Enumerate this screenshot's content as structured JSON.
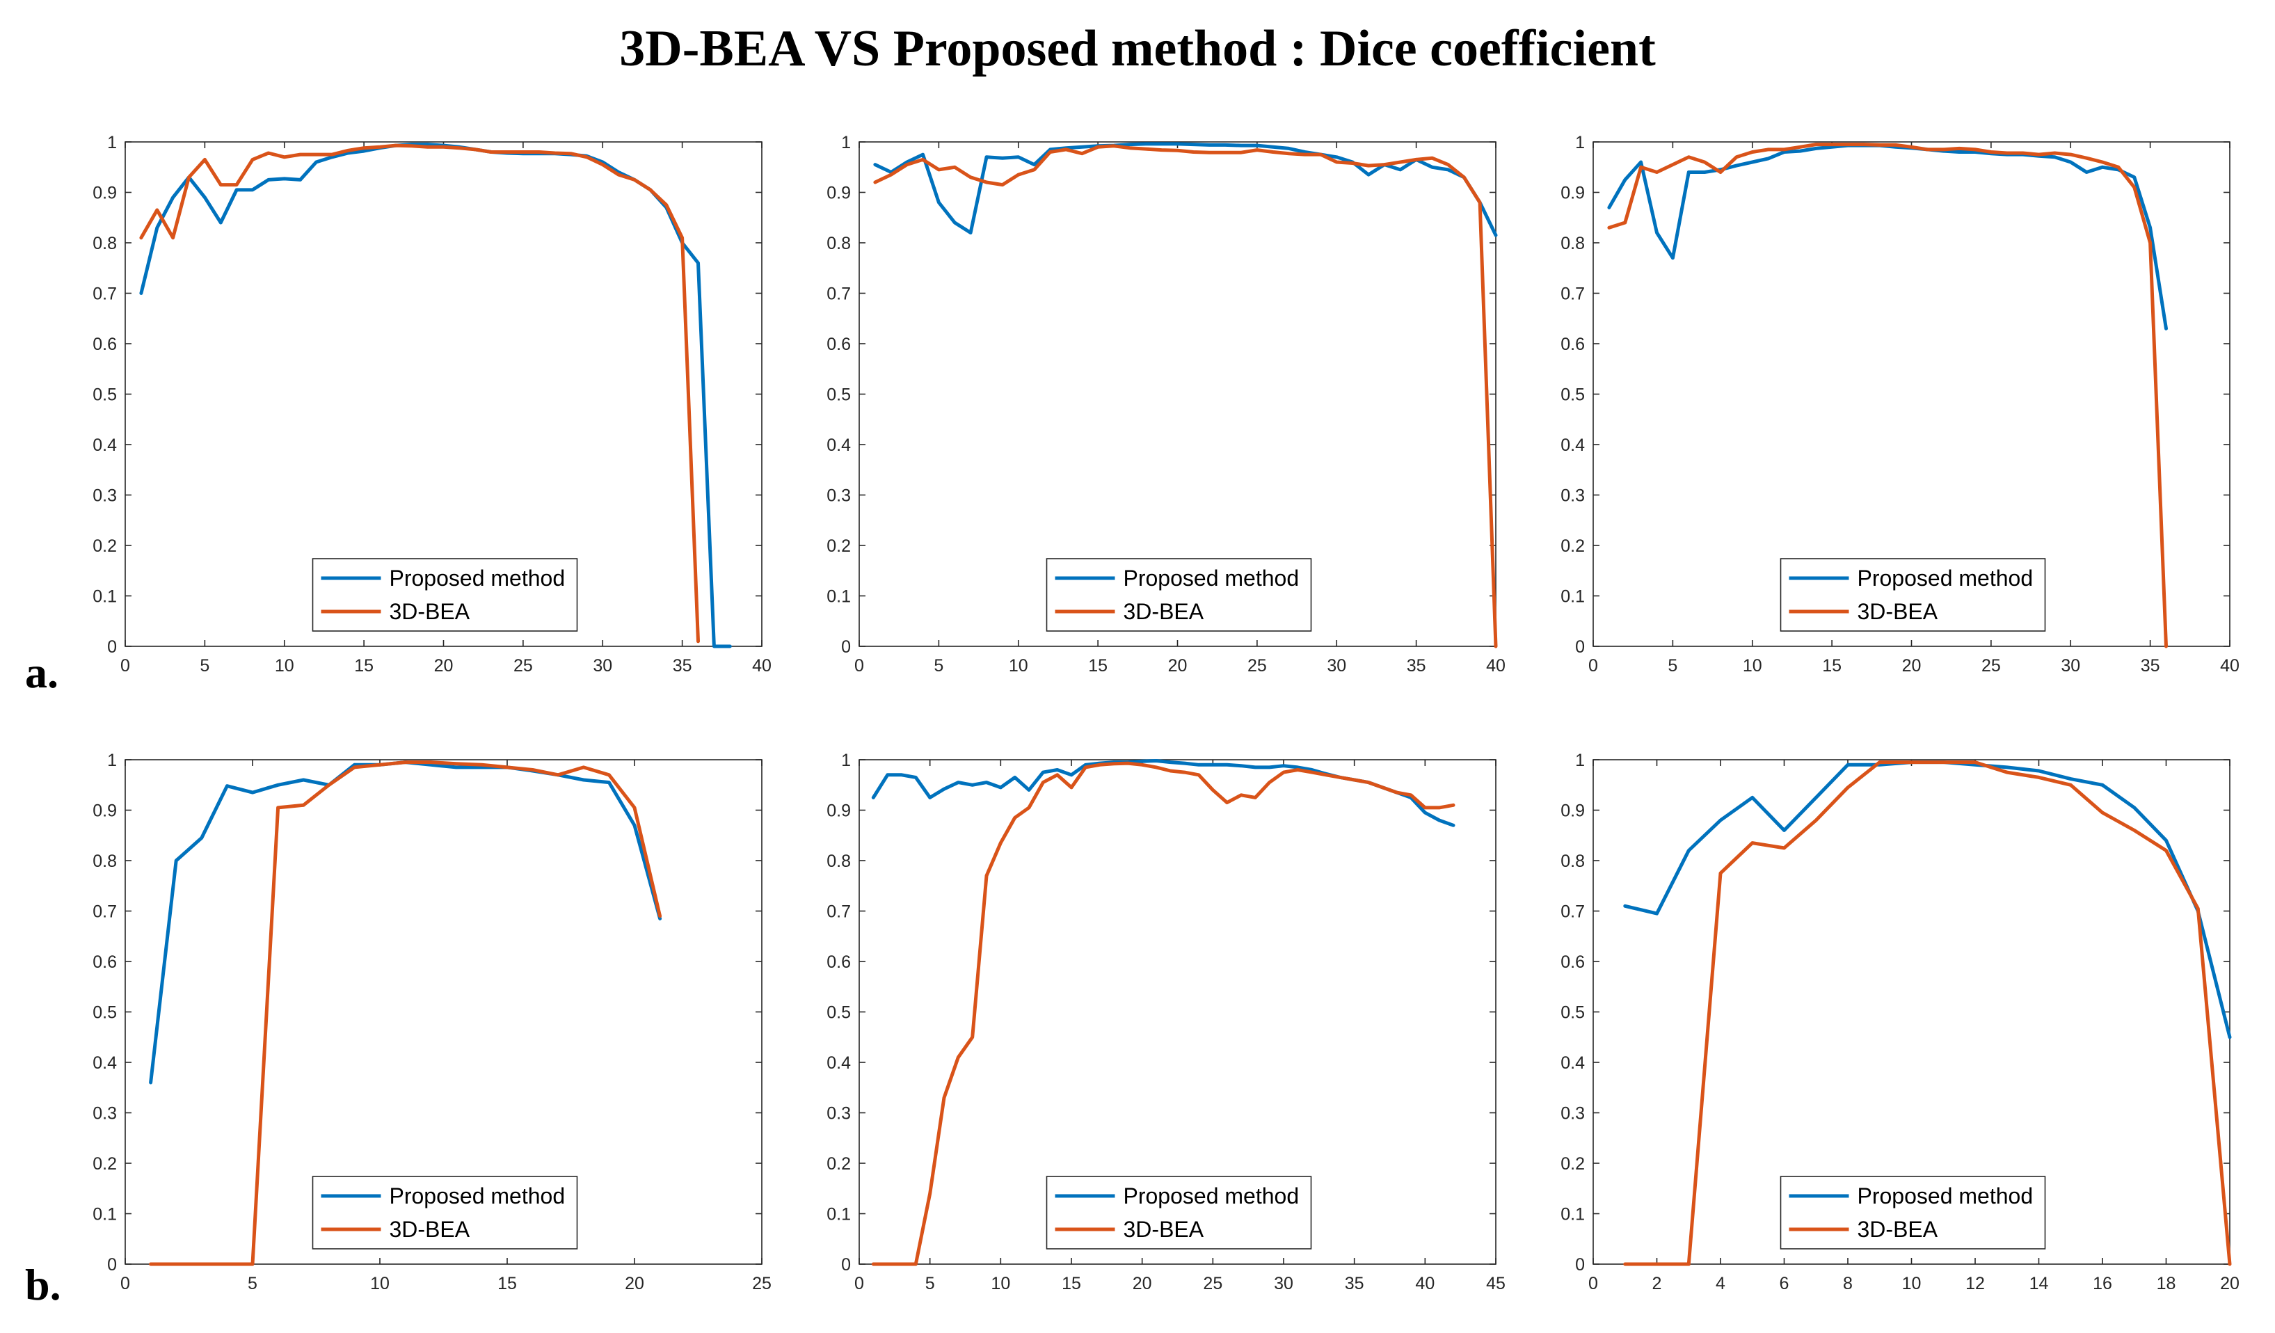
{
  "title": "3D-BEA VS Proposed method : Dice coefficient",
  "row_labels": {
    "a": "a.",
    "b": "b."
  },
  "colors": {
    "proposed": "#0072BD",
    "bea": "#D95319",
    "axis": "#262626"
  },
  "legend": {
    "proposed": "Proposed method",
    "bea": "3D-BEA",
    "placement": "bottom-center"
  },
  "chart_data": [
    {
      "type": "line",
      "panel": "a-1",
      "xlim": [
        0,
        40
      ],
      "ylim": [
        0,
        1
      ],
      "xticks": [
        0,
        5,
        10,
        15,
        20,
        25,
        30,
        35,
        40
      ],
      "yticks": [
        0,
        0.1,
        0.2,
        0.3,
        0.4,
        0.5,
        0.6,
        0.7,
        0.8,
        0.9,
        1
      ],
      "series": [
        {
          "name": "Proposed method",
          "x": [
            1,
            2,
            3,
            4,
            5,
            6,
            7,
            8,
            9,
            10,
            11,
            12,
            13,
            14,
            15,
            16,
            17,
            18,
            19,
            20,
            21,
            22,
            23,
            24,
            25,
            26,
            27,
            28,
            29,
            30,
            31,
            32,
            33,
            34,
            35,
            36,
            37,
            38
          ],
          "y": [
            0.7,
            0.83,
            0.89,
            0.93,
            0.89,
            0.84,
            0.905,
            0.905,
            0.925,
            0.927,
            0.925,
            0.96,
            0.97,
            0.978,
            0.982,
            0.988,
            0.993,
            0.995,
            0.995,
            0.993,
            0.99,
            0.985,
            0.98,
            0.978,
            0.977,
            0.977,
            0.977,
            0.975,
            0.972,
            0.96,
            0.94,
            0.925,
            0.905,
            0.87,
            0.8,
            0.76,
            0.0,
            0.0
          ]
        },
        {
          "name": "3D-BEA",
          "x": [
            1,
            2,
            3,
            4,
            5,
            6,
            7,
            8,
            9,
            10,
            11,
            12,
            13,
            14,
            15,
            16,
            17,
            18,
            19,
            20,
            21,
            22,
            23,
            24,
            25,
            26,
            27,
            28,
            29,
            30,
            31,
            32,
            33,
            34,
            35,
            36
          ],
          "y": [
            0.81,
            0.865,
            0.81,
            0.93,
            0.965,
            0.915,
            0.915,
            0.965,
            0.978,
            0.97,
            0.975,
            0.975,
            0.975,
            0.983,
            0.988,
            0.99,
            0.993,
            0.992,
            0.99,
            0.99,
            0.988,
            0.985,
            0.98,
            0.98,
            0.98,
            0.98,
            0.978,
            0.977,
            0.97,
            0.955,
            0.935,
            0.925,
            0.905,
            0.875,
            0.81,
            0.01
          ]
        }
      ]
    },
    {
      "type": "line",
      "panel": "a-2",
      "xlim": [
        0,
        40
      ],
      "ylim": [
        0,
        1
      ],
      "xticks": [
        0,
        5,
        10,
        15,
        20,
        25,
        30,
        35,
        40
      ],
      "yticks": [
        0,
        0.1,
        0.2,
        0.3,
        0.4,
        0.5,
        0.6,
        0.7,
        0.8,
        0.9,
        1
      ],
      "series": [
        {
          "name": "Proposed method",
          "x": [
            1,
            2,
            3,
            4,
            5,
            6,
            7,
            8,
            9,
            10,
            11,
            12,
            13,
            14,
            15,
            16,
            17,
            18,
            19,
            20,
            21,
            22,
            23,
            24,
            25,
            26,
            27,
            28,
            29,
            30,
            31,
            32,
            33,
            34,
            35,
            36,
            37,
            38,
            39,
            40
          ],
          "y": [
            0.955,
            0.94,
            0.96,
            0.975,
            0.88,
            0.84,
            0.82,
            0.97,
            0.968,
            0.97,
            0.955,
            0.985,
            0.988,
            0.99,
            0.992,
            0.993,
            0.995,
            0.996,
            0.996,
            0.996,
            0.995,
            0.994,
            0.994,
            0.993,
            0.993,
            0.99,
            0.987,
            0.98,
            0.975,
            0.97,
            0.96,
            0.935,
            0.955,
            0.945,
            0.965,
            0.95,
            0.945,
            0.93,
            0.88,
            0.815
          ]
        },
        {
          "name": "3D-BEA",
          "x": [
            1,
            2,
            3,
            4,
            5,
            6,
            7,
            8,
            9,
            10,
            11,
            12,
            13,
            14,
            15,
            16,
            17,
            18,
            19,
            20,
            21,
            22,
            23,
            24,
            25,
            26,
            27,
            28,
            29,
            30,
            31,
            32,
            33,
            34,
            35,
            36,
            37,
            38,
            39,
            40
          ],
          "y": [
            0.92,
            0.935,
            0.955,
            0.965,
            0.945,
            0.95,
            0.93,
            0.92,
            0.915,
            0.935,
            0.945,
            0.98,
            0.985,
            0.977,
            0.99,
            0.992,
            0.988,
            0.986,
            0.984,
            0.983,
            0.98,
            0.979,
            0.979,
            0.979,
            0.984,
            0.98,
            0.977,
            0.975,
            0.975,
            0.96,
            0.958,
            0.953,
            0.955,
            0.96,
            0.965,
            0.968,
            0.955,
            0.93,
            0.88,
            0.0
          ]
        }
      ]
    },
    {
      "type": "line",
      "panel": "a-3",
      "xlim": [
        0,
        40
      ],
      "ylim": [
        0,
        1
      ],
      "xticks": [
        0,
        5,
        10,
        15,
        20,
        25,
        30,
        35,
        40
      ],
      "yticks": [
        0,
        0.1,
        0.2,
        0.3,
        0.4,
        0.5,
        0.6,
        0.7,
        0.8,
        0.9,
        1
      ],
      "series": [
        {
          "name": "Proposed method",
          "x": [
            1,
            2,
            3,
            4,
            5,
            6,
            7,
            8,
            9,
            10,
            11,
            12,
            13,
            14,
            15,
            16,
            17,
            18,
            19,
            20,
            21,
            22,
            23,
            24,
            25,
            26,
            27,
            28,
            29,
            30,
            31,
            32,
            33,
            34,
            35,
            36
          ],
          "y": [
            0.87,
            0.925,
            0.96,
            0.82,
            0.77,
            0.94,
            0.94,
            0.945,
            0.953,
            0.96,
            0.967,
            0.98,
            0.982,
            0.987,
            0.99,
            0.993,
            0.993,
            0.993,
            0.99,
            0.988,
            0.985,
            0.982,
            0.98,
            0.98,
            0.977,
            0.975,
            0.975,
            0.972,
            0.97,
            0.96,
            0.94,
            0.95,
            0.945,
            0.93,
            0.83,
            0.63
          ]
        },
        {
          "name": "3D-BEA",
          "x": [
            1,
            2,
            3,
            4,
            5,
            6,
            7,
            8,
            9,
            10,
            11,
            12,
            13,
            14,
            15,
            16,
            17,
            18,
            19,
            20,
            21,
            22,
            23,
            24,
            25,
            26,
            27,
            28,
            29,
            30,
            31,
            32,
            33,
            34,
            35,
            36
          ],
          "y": [
            0.83,
            0.84,
            0.95,
            0.94,
            0.955,
            0.97,
            0.96,
            0.94,
            0.97,
            0.98,
            0.985,
            0.985,
            0.99,
            0.995,
            0.995,
            0.995,
            0.995,
            0.994,
            0.994,
            0.99,
            0.985,
            0.985,
            0.987,
            0.985,
            0.98,
            0.978,
            0.978,
            0.975,
            0.978,
            0.975,
            0.968,
            0.96,
            0.95,
            0.91,
            0.8,
            0.0
          ]
        }
      ]
    },
    {
      "type": "line",
      "panel": "b-1",
      "xlim": [
        0,
        25
      ],
      "ylim": [
        0,
        1
      ],
      "xticks": [
        0,
        5,
        10,
        15,
        20,
        25
      ],
      "yticks": [
        0,
        0.1,
        0.2,
        0.3,
        0.4,
        0.5,
        0.6,
        0.7,
        0.8,
        0.9,
        1
      ],
      "series": [
        {
          "name": "Proposed method",
          "x": [
            1,
            2,
            3,
            4,
            5,
            6,
            7,
            8,
            9,
            10,
            11,
            12,
            13,
            14,
            15,
            16,
            17,
            18,
            19,
            20,
            21
          ],
          "y": [
            0.36,
            0.8,
            0.845,
            0.948,
            0.935,
            0.95,
            0.96,
            0.95,
            0.99,
            0.99,
            0.995,
            0.99,
            0.985,
            0.985,
            0.985,
            0.978,
            0.97,
            0.96,
            0.955,
            0.87,
            0.685
          ]
        },
        {
          "name": "3D-BEA",
          "x": [
            1,
            2,
            3,
            4,
            5,
            6,
            7,
            8,
            9,
            10,
            11,
            12,
            13,
            14,
            15,
            16,
            17,
            18,
            19,
            20,
            21
          ],
          "y": [
            0.0,
            0.0,
            0.0,
            0.0,
            0.0,
            0.905,
            0.91,
            0.95,
            0.985,
            0.99,
            0.995,
            0.995,
            0.992,
            0.99,
            0.985,
            0.98,
            0.97,
            0.985,
            0.97,
            0.905,
            0.69
          ]
        }
      ]
    },
    {
      "type": "line",
      "panel": "b-2",
      "xlim": [
        0,
        45
      ],
      "ylim": [
        0,
        1
      ],
      "xticks": [
        0,
        5,
        10,
        15,
        20,
        25,
        30,
        35,
        40,
        45
      ],
      "yticks": [
        0,
        0.1,
        0.2,
        0.3,
        0.4,
        0.5,
        0.6,
        0.7,
        0.8,
        0.9,
        1
      ],
      "series": [
        {
          "name": "Proposed method",
          "x": [
            1,
            2,
            3,
            4,
            5,
            6,
            7,
            8,
            9,
            10,
            11,
            12,
            13,
            14,
            15,
            16,
            17,
            18,
            19,
            20,
            21,
            22,
            23,
            24,
            25,
            26,
            27,
            28,
            29,
            30,
            31,
            32,
            33,
            34,
            35,
            36,
            37,
            38,
            39,
            40,
            41,
            42
          ],
          "y": [
            0.925,
            0.97,
            0.97,
            0.965,
            0.925,
            0.942,
            0.955,
            0.95,
            0.955,
            0.945,
            0.965,
            0.94,
            0.975,
            0.98,
            0.97,
            0.99,
            0.993,
            0.995,
            0.995,
            0.997,
            0.998,
            0.995,
            0.993,
            0.99,
            0.99,
            0.99,
            0.988,
            0.985,
            0.985,
            0.988,
            0.985,
            0.98,
            0.972,
            0.965,
            0.96,
            0.955,
            0.945,
            0.935,
            0.925,
            0.895,
            0.88,
            0.87
          ]
        },
        {
          "name": "3D-BEA",
          "x": [
            1,
            2,
            3,
            4,
            5,
            6,
            7,
            8,
            9,
            10,
            11,
            12,
            13,
            14,
            15,
            16,
            17,
            18,
            19,
            20,
            21,
            22,
            23,
            24,
            25,
            26,
            27,
            28,
            29,
            30,
            31,
            32,
            33,
            34,
            35,
            36,
            37,
            38,
            39,
            40,
            41,
            42
          ],
          "y": [
            0.0,
            0.0,
            0.0,
            0.0,
            0.14,
            0.33,
            0.41,
            0.45,
            0.77,
            0.835,
            0.885,
            0.905,
            0.955,
            0.97,
            0.945,
            0.985,
            0.99,
            0.992,
            0.993,
            0.99,
            0.985,
            0.978,
            0.975,
            0.97,
            0.94,
            0.915,
            0.93,
            0.925,
            0.955,
            0.975,
            0.98,
            0.975,
            0.97,
            0.965,
            0.96,
            0.955,
            0.945,
            0.935,
            0.93,
            0.905,
            0.905,
            0.91
          ]
        }
      ]
    },
    {
      "type": "line",
      "panel": "b-3",
      "xlim": [
        0,
        20
      ],
      "ylim": [
        0,
        1
      ],
      "xticks": [
        0,
        2,
        4,
        6,
        8,
        10,
        12,
        14,
        16,
        18,
        20
      ],
      "yticks": [
        0,
        0.1,
        0.2,
        0.3,
        0.4,
        0.5,
        0.6,
        0.7,
        0.8,
        0.9,
        1
      ],
      "series": [
        {
          "name": "Proposed method",
          "x": [
            1,
            2,
            3,
            4,
            5,
            6,
            7,
            8,
            9,
            10,
            11,
            12,
            13,
            14,
            15,
            16,
            17,
            18,
            19,
            20
          ],
          "y": [
            0.71,
            0.695,
            0.82,
            0.88,
            0.925,
            0.86,
            0.925,
            0.99,
            0.99,
            0.995,
            0.995,
            0.99,
            0.985,
            0.978,
            0.962,
            0.95,
            0.905,
            0.84,
            0.7,
            0.45
          ]
        },
        {
          "name": "3D-BEA",
          "x": [
            1,
            2,
            3,
            4,
            5,
            6,
            7,
            8,
            9,
            10,
            11,
            12,
            13,
            14,
            15,
            16,
            17,
            18,
            19,
            20
          ],
          "y": [
            0.0,
            0.0,
            0.0,
            0.775,
            0.835,
            0.825,
            0.88,
            0.945,
            0.995,
            0.995,
            0.995,
            0.995,
            0.975,
            0.965,
            0.95,
            0.895,
            0.86,
            0.82,
            0.705,
            0.0
          ]
        }
      ]
    }
  ]
}
